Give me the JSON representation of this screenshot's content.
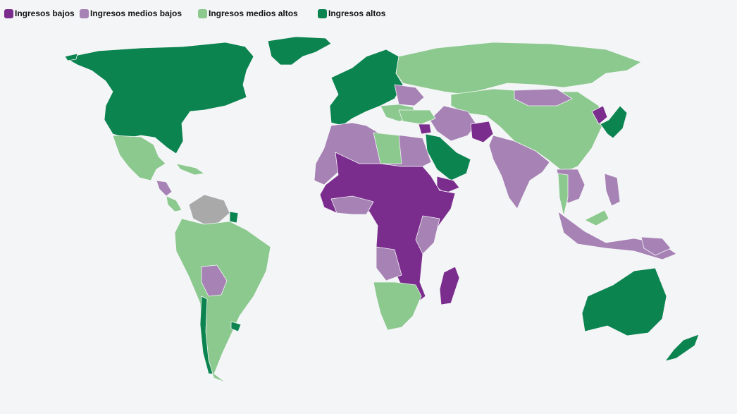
{
  "legend": {
    "items": [
      {
        "label": "Ingresos bajos",
        "color": "#7b2d8e"
      },
      {
        "label": "Ingresos medios bajos",
        "color": "#a782b5"
      },
      {
        "label": "Ingresos medios altos",
        "color": "#8cc98e"
      },
      {
        "label": "Ingresos altos",
        "color": "#0b8450"
      }
    ]
  },
  "colors": {
    "no_data": "#a9a9a9",
    "background": "#f4f5f7",
    "border": "#ffffff"
  }
}
